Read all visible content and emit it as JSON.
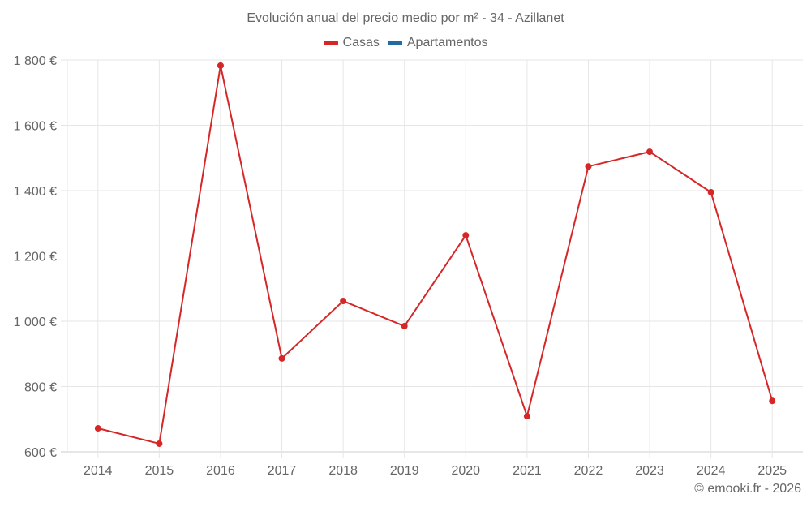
{
  "chart_data": {
    "type": "line",
    "title": "Evolución anual del precio medio por m² - 34 - Azillanet",
    "xlabel": "",
    "ylabel": "",
    "categories": [
      "2014",
      "2015",
      "2016",
      "2017",
      "2018",
      "2019",
      "2020",
      "2021",
      "2022",
      "2023",
      "2024",
      "2025"
    ],
    "series": [
      {
        "name": "Casas",
        "color": "#d62728",
        "values": [
          672,
          625,
          1783,
          886,
          1062,
          985,
          1263,
          709,
          1474,
          1519,
          1395,
          756
        ]
      },
      {
        "name": "Apartamentos",
        "color": "#1f6ba5",
        "values": []
      }
    ],
    "ylim": [
      600,
      1800
    ],
    "yticks": [
      600,
      800,
      1000,
      1200,
      1400,
      1600,
      1800
    ],
    "ytick_labels": [
      "600 €",
      "800 €",
      "1 000 €",
      "1 200 €",
      "1 400 €",
      "1 600 €",
      "1 800 €"
    ],
    "grid": true,
    "legend_position": "top"
  },
  "legend": {
    "items": [
      {
        "label": "Casas",
        "color": "#d62728"
      },
      {
        "label": "Apartamentos",
        "color": "#1f6ba5"
      }
    ]
  },
  "credit": "© emooki.fr - 2026"
}
